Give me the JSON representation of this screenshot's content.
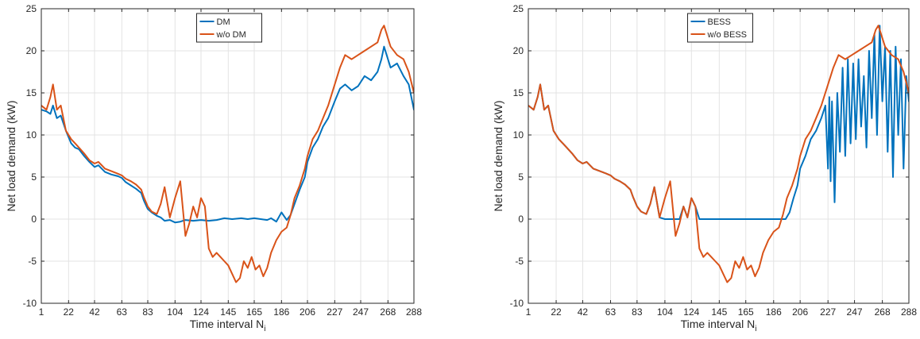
{
  "chart_data": [
    {
      "type": "line",
      "xlabel": "Time interval N",
      "xlabel_sub": "i",
      "ylabel": "Net load demand (kW)",
      "xlim": [
        1,
        288
      ],
      "ylim": [
        -10,
        25
      ],
      "xticks": [
        1,
        22,
        42,
        63,
        83,
        104,
        124,
        145,
        165,
        186,
        206,
        227,
        247,
        268,
        288
      ],
      "xtick_labels": [
        "1",
        "22",
        "42",
        "63",
        "83",
        "104",
        "124",
        "145",
        "165",
        "186",
        "206",
        "227",
        "247",
        "268",
        "288"
      ],
      "yticks": [
        -10,
        -5,
        0,
        5,
        10,
        15,
        20,
        25
      ],
      "ytick_labels": [
        "-10",
        "-5",
        "0",
        "5",
        "10",
        "15",
        "20",
        "25"
      ],
      "grid": true,
      "legend_position": "top-center",
      "series": [
        {
          "name": "DM",
          "color": "#0072BD",
          "x": [
            1,
            5,
            8,
            10,
            13,
            16,
            20,
            24,
            27,
            30,
            34,
            38,
            42,
            45,
            50,
            55,
            60,
            63,
            66,
            70,
            74,
            78,
            80,
            83,
            86,
            90,
            93,
            96,
            100,
            104,
            108,
            112,
            118,
            124,
            130,
            136,
            142,
            148,
            155,
            160,
            165,
            170,
            175,
            178,
            182,
            186,
            190,
            193,
            196,
            200,
            204,
            206,
            210,
            214,
            218,
            222,
            227,
            231,
            235,
            240,
            245,
            250,
            255,
            260,
            263,
            265,
            270,
            275,
            280,
            284,
            288
          ],
          "y": [
            13,
            12.8,
            12.5,
            13.5,
            12,
            12.3,
            10.5,
            9,
            8.5,
            8.3,
            7.5,
            6.8,
            6.2,
            6.4,
            5.6,
            5.3,
            5.1,
            4.9,
            4.4,
            4,
            3.6,
            3.1,
            2.2,
            1.2,
            0.8,
            0.4,
            0.2,
            -0.2,
            -0.1,
            -0.4,
            -0.3,
            -0.1,
            -0.2,
            -0.1,
            -0.2,
            -0.1,
            0.1,
            0,
            0.1,
            0,
            0.1,
            0,
            -0.1,
            0.1,
            -0.3,
            0.8,
            -0.1,
            0.5,
            1.8,
            3.5,
            5,
            6.8,
            8.5,
            9.5,
            11,
            12,
            14,
            15.5,
            16,
            15.3,
            15.8,
            17,
            16.5,
            17.5,
            19,
            20.5,
            18,
            18.5,
            17,
            16,
            13
          ]
        },
        {
          "name": "w/o DM",
          "color": "#D95319",
          "x": [
            1,
            5,
            8,
            10,
            13,
            16,
            20,
            24,
            27,
            30,
            34,
            38,
            42,
            45,
            50,
            55,
            60,
            63,
            66,
            70,
            74,
            78,
            80,
            83,
            86,
            90,
            93,
            96,
            100,
            104,
            108,
            112,
            115,
            118,
            121,
            124,
            127,
            130,
            133,
            136,
            139,
            142,
            145,
            148,
            151,
            154,
            157,
            160,
            163,
            166,
            169,
            172,
            175,
            178,
            182,
            186,
            190,
            193,
            196,
            200,
            204,
            206,
            210,
            214,
            218,
            222,
            227,
            231,
            235,
            240,
            245,
            250,
            255,
            260,
            263,
            265,
            270,
            275,
            280,
            284,
            288
          ],
          "y": [
            13.5,
            13,
            14.5,
            16,
            13,
            13.5,
            10.5,
            9.5,
            9,
            8.5,
            7.8,
            7,
            6.6,
            6.8,
            6,
            5.7,
            5.4,
            5.2,
            4.8,
            4.5,
            4.1,
            3.5,
            2.6,
            1.5,
            0.9,
            0.6,
            1.8,
            3.8,
            0.2,
            2.5,
            4.5,
            -2,
            -0.5,
            1.5,
            0.2,
            2.5,
            1.5,
            -3.5,
            -4.5,
            -4,
            -4.5,
            -5,
            -5.5,
            -6.5,
            -7.5,
            -7,
            -5,
            -5.8,
            -4.5,
            -6,
            -5.5,
            -6.8,
            -5.8,
            -4,
            -2.5,
            -1.5,
            -1,
            0.5,
            2.5,
            4,
            6,
            7.5,
            9.5,
            10.5,
            12,
            13.5,
            16,
            18,
            19.5,
            19,
            19.5,
            20,
            20.5,
            21,
            22.5,
            23,
            20.5,
            19.5,
            19,
            17.5,
            15
          ]
        }
      ]
    },
    {
      "type": "line",
      "xlabel": "Time interval N",
      "xlabel_sub": "i",
      "ylabel": "Net load demand (kW)",
      "xlim": [
        1,
        288
      ],
      "ylim": [
        -10,
        25
      ],
      "xticks": [
        1,
        22,
        42,
        63,
        83,
        104,
        124,
        145,
        165,
        186,
        206,
        227,
        247,
        268,
        288
      ],
      "xtick_labels": [
        "1",
        "22",
        "42",
        "63",
        "83",
        "104",
        "124",
        "145",
        "165",
        "186",
        "206",
        "227",
        "247",
        "268",
        "288"
      ],
      "yticks": [
        -10,
        -5,
        0,
        5,
        10,
        15,
        20,
        25
      ],
      "ytick_labels": [
        "-10",
        "-5",
        "0",
        "5",
        "10",
        "15",
        "20",
        "25"
      ],
      "grid": true,
      "legend_position": "top-center",
      "series": [
        {
          "name": "BESS",
          "color": "#0072BD",
          "x": [
            1,
            5,
            8,
            10,
            13,
            16,
            20,
            24,
            27,
            30,
            34,
            38,
            42,
            45,
            50,
            55,
            60,
            63,
            66,
            70,
            74,
            78,
            80,
            83,
            86,
            90,
            93,
            96,
            100,
            104,
            108,
            112,
            115,
            118,
            121,
            124,
            127,
            130,
            133,
            136,
            140,
            150,
            160,
            170,
            180,
            190,
            195,
            198,
            201,
            204,
            206,
            210,
            214,
            218,
            222,
            225,
            227,
            228,
            229,
            230,
            232,
            234,
            236,
            238,
            240,
            242,
            244,
            246,
            248,
            250,
            252,
            254,
            256,
            258,
            260,
            262,
            264,
            266,
            268,
            270,
            272,
            274,
            276,
            278,
            280,
            282,
            284,
            286,
            288
          ],
          "y": [
            13.5,
            13,
            14.5,
            16,
            13,
            13.5,
            10.5,
            9.5,
            9,
            8.5,
            7.8,
            7,
            6.6,
            6.8,
            6,
            5.7,
            5.4,
            5.2,
            4.8,
            4.5,
            4.1,
            3.5,
            2.6,
            1.5,
            0.9,
            0.6,
            1.8,
            3.8,
            0.2,
            0,
            0,
            0,
            0,
            1.5,
            0.2,
            2.5,
            1.5,
            0,
            0,
            0,
            0,
            0,
            0,
            0,
            0,
            0,
            0,
            0.8,
            2.5,
            4,
            6,
            7.5,
            9.5,
            10.5,
            12,
            13.5,
            6,
            14.5,
            4.5,
            14,
            2,
            15,
            8,
            18,
            7.5,
            19,
            9,
            18.5,
            9.5,
            19,
            11,
            17,
            8.5,
            20,
            12,
            22,
            10,
            23,
            14,
            20.5,
            8,
            20,
            5,
            20.5,
            10,
            19,
            6,
            17,
            14
          ]
        },
        {
          "name": "w/o BESS",
          "color": "#D95319",
          "x": [
            1,
            5,
            8,
            10,
            13,
            16,
            20,
            24,
            27,
            30,
            34,
            38,
            42,
            45,
            50,
            55,
            60,
            63,
            66,
            70,
            74,
            78,
            80,
            83,
            86,
            90,
            93,
            96,
            100,
            104,
            108,
            112,
            115,
            118,
            121,
            124,
            127,
            130,
            133,
            136,
            139,
            142,
            145,
            148,
            151,
            154,
            157,
            160,
            163,
            166,
            169,
            172,
            175,
            178,
            182,
            186,
            190,
            193,
            196,
            200,
            204,
            206,
            210,
            214,
            218,
            222,
            227,
            231,
            235,
            240,
            245,
            250,
            255,
            260,
            263,
            265,
            270,
            275,
            280,
            284,
            288
          ],
          "y": [
            13.5,
            13,
            14.5,
            16,
            13,
            13.5,
            10.5,
            9.5,
            9,
            8.5,
            7.8,
            7,
            6.6,
            6.8,
            6,
            5.7,
            5.4,
            5.2,
            4.8,
            4.5,
            4.1,
            3.5,
            2.6,
            1.5,
            0.9,
            0.6,
            1.8,
            3.8,
            0.2,
            2.5,
            4.5,
            -2,
            -0.5,
            1.5,
            0.2,
            2.5,
            1.5,
            -3.5,
            -4.5,
            -4,
            -4.5,
            -5,
            -5.5,
            -6.5,
            -7.5,
            -7,
            -5,
            -5.8,
            -4.5,
            -6,
            -5.5,
            -6.8,
            -5.8,
            -4,
            -2.5,
            -1.5,
            -1,
            0.5,
            2.5,
            4,
            6,
            7.5,
            9.5,
            10.5,
            12,
            13.5,
            16,
            18,
            19.5,
            19,
            19.5,
            20,
            20.5,
            21,
            22.5,
            23,
            20.5,
            19.5,
            19,
            17.5,
            15
          ]
        }
      ]
    }
  ]
}
